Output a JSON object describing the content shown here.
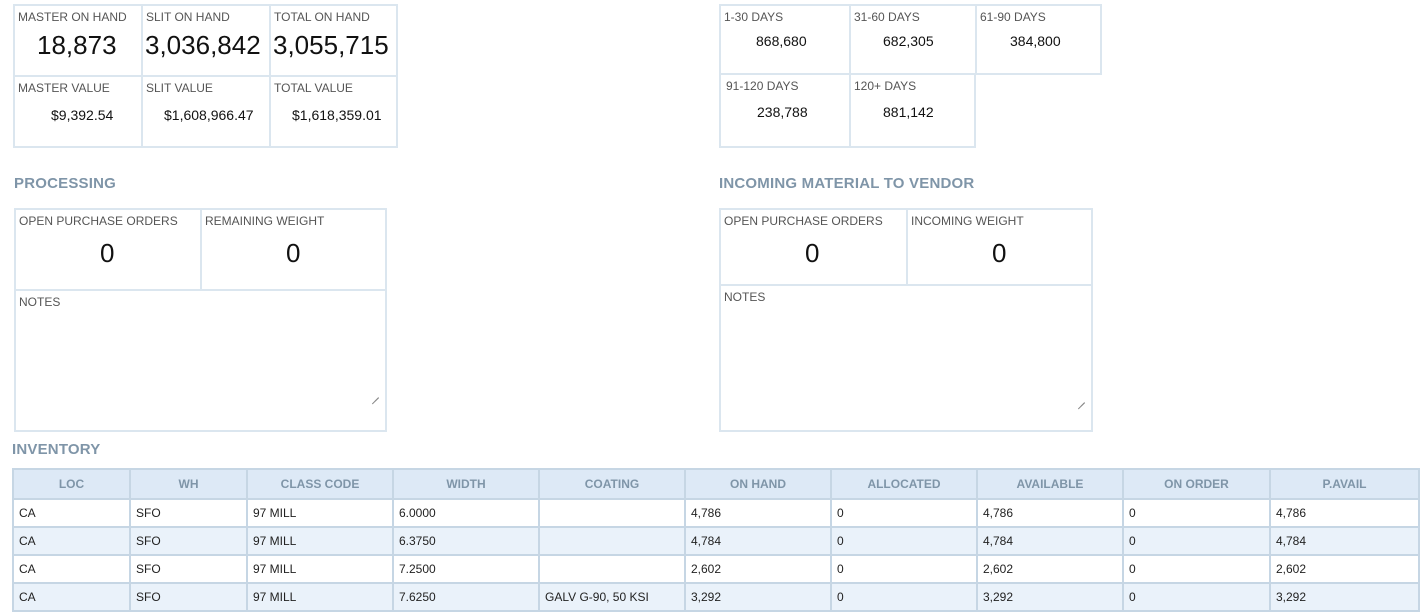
{
  "summary": {
    "master_on_hand_label": "MASTER ON HAND",
    "master_on_hand": "18,873",
    "slit_on_hand_label": "SLIT ON HAND",
    "slit_on_hand": "3,036,842",
    "total_on_hand_label": "TOTAL ON HAND",
    "total_on_hand": "3,055,715",
    "master_value_label": "MASTER VALUE",
    "master_value": "$9,392.54",
    "slit_value_label": "SLIT VALUE",
    "slit_value": "$1,608,966.47",
    "total_value_label": "TOTAL VALUE",
    "total_value": "$1,618,359.01"
  },
  "aging": {
    "d1_30_label": "1-30 DAYS",
    "d1_30": "868,680",
    "d31_60_label": "31-60 DAYS",
    "d31_60": "682,305",
    "d61_90_label": "61-90 DAYS",
    "d61_90": "384,800",
    "d91_120_label": "91-120 DAYS",
    "d91_120": "238,788",
    "d120p_label": "120+ DAYS",
    "d120p": "881,142"
  },
  "processing": {
    "title": "PROCESSING",
    "open_po_label": "OPEN PURCHASE ORDERS",
    "open_po": "0",
    "remaining_weight_label": "REMAINING WEIGHT",
    "remaining_weight": "0",
    "notes_label": "NOTES",
    "notes_value": ""
  },
  "incoming": {
    "title": "INCOMING MATERIAL TO VENDOR",
    "open_po_label": "OPEN PURCHASE ORDERS",
    "open_po": "0",
    "incoming_weight_label": "INCOMING WEIGHT",
    "incoming_weight": "0",
    "notes_label": "NOTES",
    "notes_value": ""
  },
  "inventory": {
    "title": "INVENTORY",
    "columns": [
      "LOC",
      "WH",
      "CLASS CODE",
      "WIDTH",
      "COATING",
      "ON HAND",
      "ALLOCATED",
      "AVAILABLE",
      "ON ORDER",
      "P.AVAIL"
    ],
    "rows": [
      [
        "CA",
        "SFO",
        "97 MILL",
        "6.0000",
        "",
        "4,786",
        "0",
        "4,786",
        "0",
        "4,786"
      ],
      [
        "CA",
        "SFO",
        "97 MILL",
        "6.3750",
        "",
        "4,784",
        "0",
        "4,784",
        "0",
        "4,784"
      ],
      [
        "CA",
        "SFO",
        "97 MILL",
        "7.2500",
        "",
        "2,602",
        "0",
        "2,602",
        "0",
        "2,602"
      ],
      [
        "CA",
        "SFO",
        "97 MILL",
        "7.6250",
        "GALV G-90, 50 KSI",
        "3,292",
        "0",
        "3,292",
        "0",
        "3,292"
      ]
    ]
  },
  "colors": {
    "border": "#dbe6ef",
    "section_title": "#7f95a8",
    "header_bg": "#dde9f6",
    "row_alt_bg": "#eaf2fa"
  }
}
